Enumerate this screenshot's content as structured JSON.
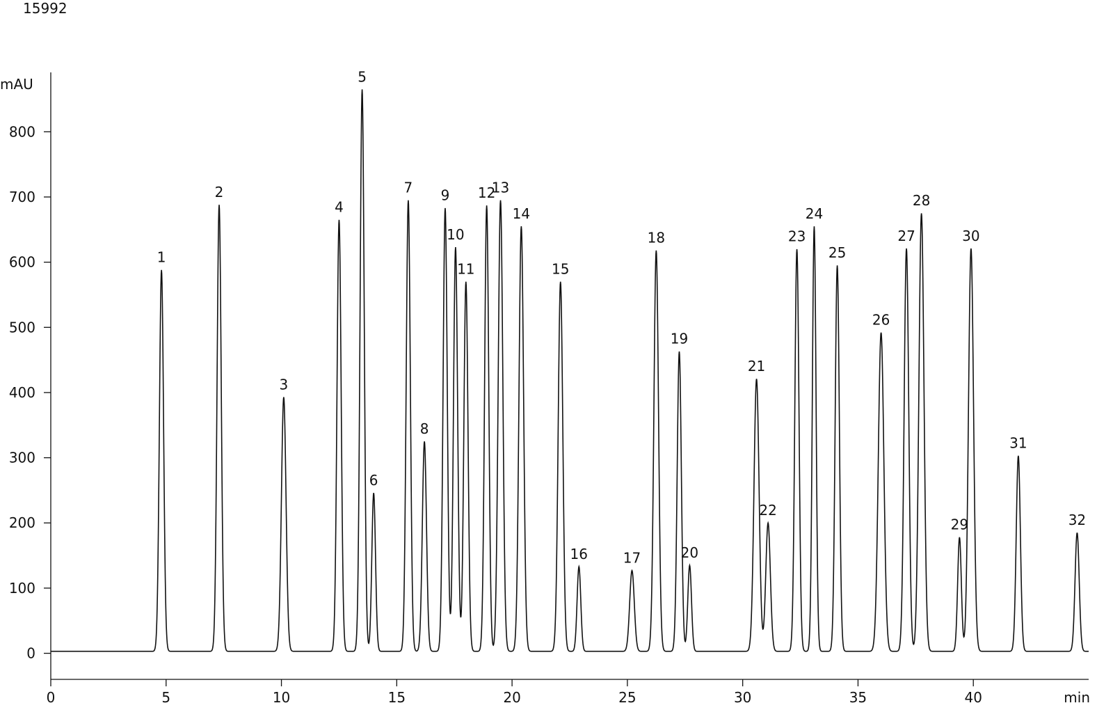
{
  "figure_id": "15992",
  "chart_data": {
    "type": "line",
    "title": "",
    "xlabel": "min",
    "ylabel": "mAU",
    "xlim": [
      0,
      45
    ],
    "ylim": [
      -40,
      905
    ],
    "x_ticks": [
      0,
      5,
      10,
      15,
      20,
      25,
      30,
      35,
      40
    ],
    "y_ticks": [
      0,
      100,
      200,
      300,
      400,
      500,
      600,
      700,
      800
    ],
    "grid": false,
    "baseline": 3,
    "line_color": "#111111",
    "peaks": [
      {
        "label": "1",
        "t": 4.8,
        "h": 585,
        "w": 0.09
      },
      {
        "label": "2",
        "t": 7.3,
        "h": 685,
        "w": 0.09
      },
      {
        "label": "3",
        "t": 10.1,
        "h": 390,
        "w": 0.1
      },
      {
        "label": "4",
        "t": 12.5,
        "h": 662,
        "w": 0.09
      },
      {
        "label": "5",
        "t": 13.5,
        "h": 862,
        "w": 0.09
      },
      {
        "label": "6",
        "t": 14.0,
        "h": 243,
        "w": 0.08
      },
      {
        "label": "7",
        "t": 15.5,
        "h": 692,
        "w": 0.09
      },
      {
        "label": "8",
        "t": 16.2,
        "h": 322,
        "w": 0.09
      },
      {
        "label": "9",
        "t": 17.1,
        "h": 680,
        "w": 0.09
      },
      {
        "label": "10",
        "t": 17.55,
        "h": 620,
        "w": 0.09
      },
      {
        "label": "11",
        "t": 18.0,
        "h": 567,
        "w": 0.09
      },
      {
        "label": "12",
        "t": 18.9,
        "h": 684,
        "w": 0.09
      },
      {
        "label": "13",
        "t": 19.5,
        "h": 692,
        "w": 0.1
      },
      {
        "label": "14",
        "t": 20.4,
        "h": 652,
        "w": 0.1
      },
      {
        "label": "15",
        "t": 22.1,
        "h": 567,
        "w": 0.1
      },
      {
        "label": "16",
        "t": 22.9,
        "h": 130,
        "w": 0.08
      },
      {
        "label": "17",
        "t": 25.2,
        "h": 124,
        "w": 0.1
      },
      {
        "label": "18",
        "t": 26.25,
        "h": 615,
        "w": 0.1
      },
      {
        "label": "19",
        "t": 27.25,
        "h": 460,
        "w": 0.09
      },
      {
        "label": "20",
        "t": 27.7,
        "h": 132,
        "w": 0.08
      },
      {
        "label": "21",
        "t": 30.6,
        "h": 418,
        "w": 0.11
      },
      {
        "label": "22",
        "t": 31.1,
        "h": 197,
        "w": 0.1
      },
      {
        "label": "23",
        "t": 32.35,
        "h": 617,
        "w": 0.09
      },
      {
        "label": "24",
        "t": 33.1,
        "h": 652,
        "w": 0.08
      },
      {
        "label": "25",
        "t": 34.1,
        "h": 592,
        "w": 0.09
      },
      {
        "label": "26",
        "t": 36.0,
        "h": 489,
        "w": 0.12
      },
      {
        "label": "27",
        "t": 37.1,
        "h": 618,
        "w": 0.1
      },
      {
        "label": "28",
        "t": 37.75,
        "h": 672,
        "w": 0.11
      },
      {
        "label": "29",
        "t": 39.4,
        "h": 175,
        "w": 0.08
      },
      {
        "label": "30",
        "t": 39.9,
        "h": 618,
        "w": 0.11
      },
      {
        "label": "31",
        "t": 41.95,
        "h": 300,
        "w": 0.09
      },
      {
        "label": "32",
        "t": 44.5,
        "h": 182,
        "w": 0.09
      }
    ]
  }
}
